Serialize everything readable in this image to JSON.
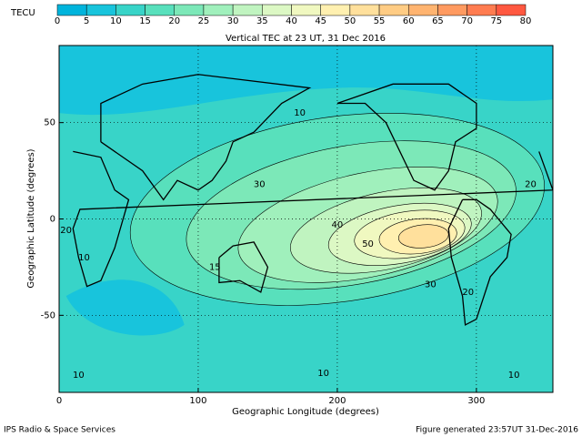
{
  "chart_data": {
    "type": "contour",
    "title": "Vertical TEC at 23 UT, 31 Dec 2016",
    "xlabel": "Geographic Longitude (degrees)",
    "ylabel": "Geographic Latitude (degrees)",
    "xlim": [
      0,
      355
    ],
    "ylim": [
      -90,
      90
    ],
    "xticks": [
      0,
      100,
      200,
      300
    ],
    "yticks": [
      -50,
      0,
      50
    ],
    "grid": true,
    "colorbar": {
      "label": "TECU",
      "ticks": [
        0,
        5,
        10,
        15,
        20,
        25,
        30,
        35,
        40,
        45,
        50,
        55,
        60,
        65,
        70,
        75,
        80
      ],
      "colors": [
        "#00b4dc",
        "#18c4dc",
        "#38d4c8",
        "#58e0bc",
        "#7ce8b8",
        "#a0f0bc",
        "#c0f4c0",
        "#dcf8c4",
        "#f0f8c0",
        "#fff0b0",
        "#ffe09c",
        "#ffcc84",
        "#ffb470",
        "#ff9a60",
        "#ff7c50",
        "#ff5840"
      ]
    },
    "contour_labels": {
      "values": [
        10,
        30,
        40,
        50,
        30,
        20,
        15,
        10,
        20,
        10,
        10,
        10,
        20
      ],
      "x": [
        173,
        144,
        200,
        222,
        267,
        294,
        112,
        18,
        339,
        190,
        14,
        327,
        5
      ],
      "y": [
        55,
        18,
        -3,
        -13,
        -34,
        -38,
        -25,
        -20,
        18,
        -80,
        -81,
        -81,
        -6
      ]
    },
    "footer_left": "IPS Radio & Space Services",
    "footer_right": "Figure generated 23:57UT 31-Dec-2016"
  }
}
